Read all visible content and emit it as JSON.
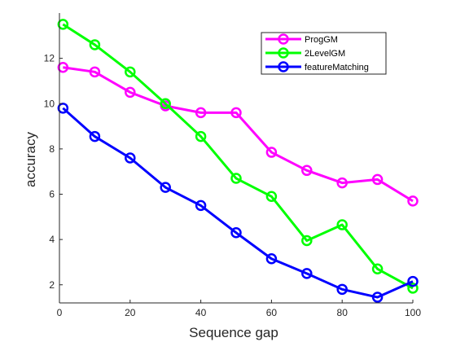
{
  "chart_data": {
    "type": "line",
    "title": "",
    "xlabel": "Sequence gap",
    "ylabel": "accuracy",
    "xlim": [
      0,
      100
    ],
    "ylim": [
      1.2,
      14.0
    ],
    "xticks": [
      0,
      20,
      40,
      60,
      80,
      100
    ],
    "yticks": [
      2,
      4,
      6,
      8,
      10,
      12
    ],
    "grid": false,
    "legend_position": "top-right",
    "x": [
      1,
      10,
      20,
      30,
      40,
      50,
      60,
      70,
      80,
      90,
      100
    ],
    "series": [
      {
        "name": "ProgGM",
        "color": "#ff00ff",
        "marker": "circle",
        "values": [
          11.6,
          11.4,
          10.5,
          9.9,
          9.6,
          9.6,
          7.85,
          7.05,
          6.5,
          6.65,
          5.7
        ]
      },
      {
        "name": "2LevelGM",
        "color": "#00ff00",
        "marker": "circle",
        "values": [
          13.5,
          12.6,
          11.4,
          10.0,
          8.55,
          6.7,
          5.9,
          3.95,
          4.65,
          2.7,
          1.85
        ]
      },
      {
        "name": "featureMatching",
        "color": "#0000ff",
        "marker": "circle",
        "values": [
          9.8,
          8.55,
          7.6,
          6.3,
          5.5,
          4.3,
          3.15,
          2.5,
          1.8,
          1.45,
          2.15
        ]
      }
    ]
  }
}
